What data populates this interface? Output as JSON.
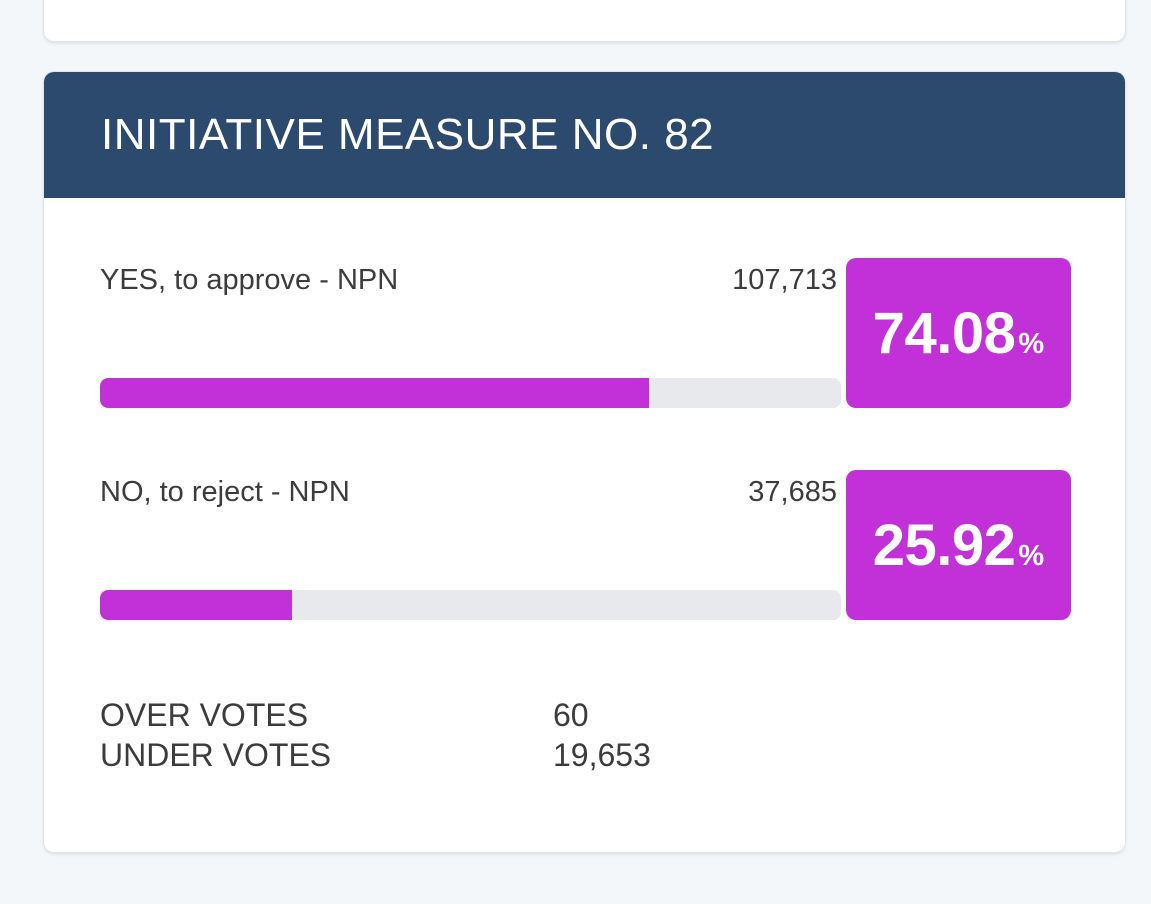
{
  "colors": {
    "page_background": "#f3f7f9",
    "card_background": "#ffffff",
    "card_border": "#e1e5e9",
    "header_background": "#2b4a6d",
    "header_text": "#ffffff",
    "accent_magenta": "#c231d8",
    "bar_track": "#e8e9ed",
    "body_text": "#3c3c3e"
  },
  "measure_card": {
    "title": "INITIATIVE MEASURE NO. 82",
    "percent_sign": "%",
    "choices": [
      {
        "label": "YES, to approve - NPN",
        "votes": "107,713",
        "percent": "74.08",
        "percent_value": 74.08
      },
      {
        "label": "NO, to reject - NPN",
        "votes": "37,685",
        "percent": "25.92",
        "percent_value": 25.92
      }
    ],
    "totals": [
      {
        "label": "OVER VOTES",
        "value": "60"
      },
      {
        "label": "UNDER VOTES",
        "value": "19,653"
      }
    ]
  }
}
